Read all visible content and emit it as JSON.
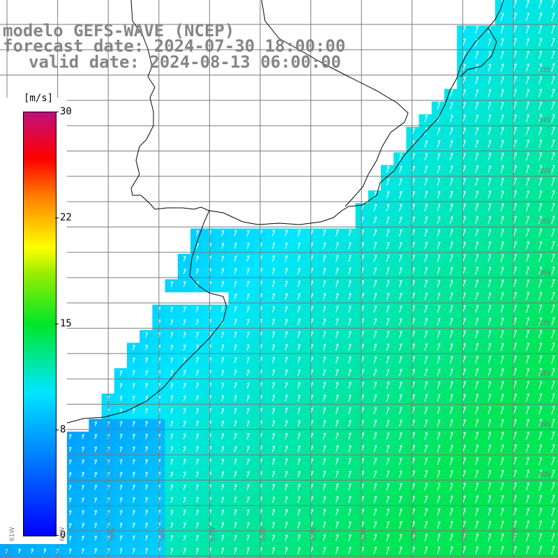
{
  "title": {
    "line1": "modelo GEFS-WAVE (NCEP)",
    "line2": "forecast date: 2024-07-30 18:00:00",
    "line3": "valid date: 2024-08-13 06:00:00"
  },
  "colorbar": {
    "units": "[m/s]",
    "ticks": [
      "30",
      "22",
      "15",
      "8",
      "0"
    ],
    "tick_values": [
      30,
      22,
      15,
      8,
      0
    ],
    "range": [
      0,
      30
    ]
  },
  "lat_labels": [
    "33S",
    "34S",
    "35S",
    "36S",
    "37S",
    "38S",
    "39S",
    "40S"
  ],
  "lon_labels": [
    "61W",
    "60W",
    "59W",
    "58W",
    "57W",
    "56W",
    "55W",
    "54W",
    "53W",
    "52W",
    "51W"
  ],
  "colors": {
    "coast": "#000000",
    "grid": "#7a7a7a",
    "arrows": "#ffffff",
    "title": "#858585"
  }
}
